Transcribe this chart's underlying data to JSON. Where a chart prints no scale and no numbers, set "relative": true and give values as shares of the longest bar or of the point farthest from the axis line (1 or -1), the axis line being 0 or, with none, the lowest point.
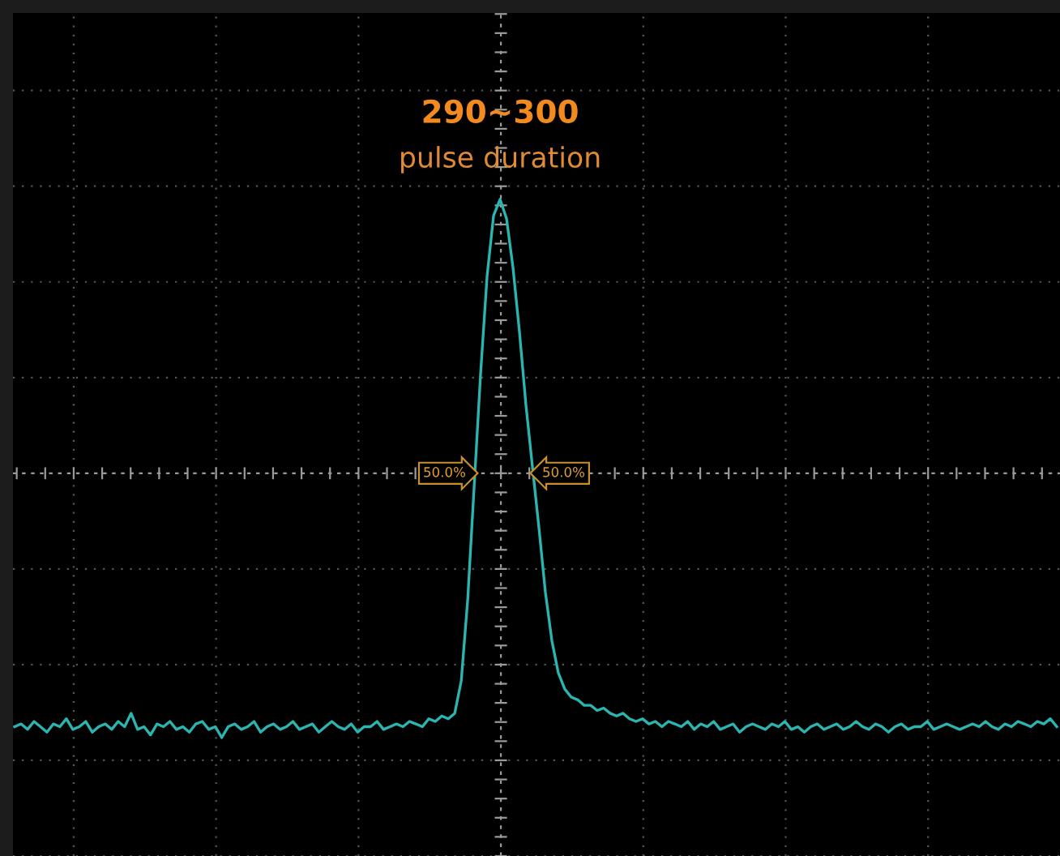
{
  "chart_data": {
    "type": "line",
    "title": "290~300",
    "subtitle": "pulse duration",
    "relative": true,
    "grid": true,
    "categories": [
      null,
      null,
      null,
      null,
      null,
      null,
      null,
      null,
      null,
      null,
      null,
      null,
      null,
      null,
      null,
      null,
      null,
      null,
      null,
      null,
      null,
      null,
      null,
      null,
      null,
      null,
      null,
      null,
      null,
      null,
      null,
      null,
      null,
      null,
      null,
      null,
      null,
      null,
      null,
      null,
      null,
      null,
      null,
      null,
      null,
      null,
      null,
      null,
      null,
      null,
      null,
      null,
      null,
      null,
      null,
      null,
      null,
      null,
      null,
      null,
      null,
      null,
      null,
      null,
      null,
      null,
      null,
      null,
      null,
      null,
      null,
      null,
      null,
      null,
      null,
      null,
      null,
      null,
      null,
      null,
      null,
      null,
      null,
      null,
      null,
      null,
      null,
      null,
      null,
      null,
      null,
      null,
      null,
      null,
      null,
      null,
      null,
      null,
      null,
      null,
      null,
      null,
      null,
      null,
      null,
      null,
      null,
      null,
      null,
      null,
      null,
      null,
      null,
      null,
      null,
      null,
      null,
      null,
      null,
      null,
      null,
      null,
      null,
      null,
      null,
      null,
      null,
      null,
      null,
      null,
      null,
      null,
      null,
      null,
      null,
      null,
      null,
      null,
      null,
      null,
      null,
      null,
      null,
      null,
      null,
      null,
      null,
      null,
      null,
      null,
      null,
      null,
      null,
      null,
      null,
      null,
      null,
      null,
      null,
      null,
      null,
      null
    ],
    "series": [
      {
        "color": "#2ab5b0",
        "values": [
          -0.925,
          -0.915,
          -0.935,
          -0.906,
          -0.925,
          -0.945,
          -0.915,
          -0.925,
          -0.896,
          -0.935,
          -0.925,
          -0.906,
          -0.945,
          -0.925,
          -0.915,
          -0.935,
          -0.906,
          -0.925,
          -0.876,
          -0.935,
          -0.925,
          -0.955,
          -0.915,
          -0.925,
          -0.906,
          -0.935,
          -0.925,
          -0.945,
          -0.915,
          -0.906,
          -0.935,
          -0.925,
          -0.965,
          -0.925,
          -0.915,
          -0.935,
          -0.925,
          -0.906,
          -0.945,
          -0.925,
          -0.915,
          -0.935,
          -0.925,
          -0.906,
          -0.935,
          -0.925,
          -0.915,
          -0.945,
          -0.925,
          -0.906,
          -0.925,
          -0.935,
          -0.915,
          -0.945,
          -0.925,
          -0.925,
          -0.906,
          -0.935,
          -0.925,
          -0.915,
          -0.925,
          -0.906,
          -0.915,
          -0.925,
          -0.896,
          -0.906,
          -0.886,
          -0.896,
          -0.876,
          -0.758,
          -0.462,
          -0.047,
          0.367,
          0.721,
          0.941,
          1.0,
          0.929,
          0.75,
          0.515,
          0.248,
          0.024,
          -0.198,
          -0.434,
          -0.611,
          -0.729,
          -0.788,
          -0.817,
          -0.827,
          -0.847,
          -0.847,
          -0.866,
          -0.857,
          -0.876,
          -0.886,
          -0.876,
          -0.896,
          -0.906,
          -0.896,
          -0.915,
          -0.906,
          -0.925,
          -0.906,
          -0.915,
          -0.925,
          -0.906,
          -0.935,
          -0.915,
          -0.925,
          -0.906,
          -0.935,
          -0.925,
          -0.915,
          -0.945,
          -0.925,
          -0.915,
          -0.925,
          -0.935,
          -0.915,
          -0.925,
          -0.906,
          -0.935,
          -0.925,
          -0.945,
          -0.925,
          -0.915,
          -0.935,
          -0.925,
          -0.915,
          -0.935,
          -0.925,
          -0.906,
          -0.925,
          -0.935,
          -0.915,
          -0.925,
          -0.945,
          -0.925,
          -0.915,
          -0.935,
          -0.925,
          -0.925,
          -0.906,
          -0.935,
          -0.925,
          -0.915,
          -0.925,
          -0.935,
          -0.925,
          -0.915,
          -0.925,
          -0.906,
          -0.925,
          -0.935,
          -0.915,
          -0.925,
          -0.906,
          -0.915,
          -0.925,
          -0.906,
          -0.915,
          -0.896,
          -0.925
        ]
      }
    ],
    "ref_lines": [
      {
        "axis": "y",
        "value": 0,
        "color": "#9a9a9a",
        "line_style": "dashed"
      }
    ],
    "annotations": [
      "50.0%",
      "50.0%"
    ]
  }
}
